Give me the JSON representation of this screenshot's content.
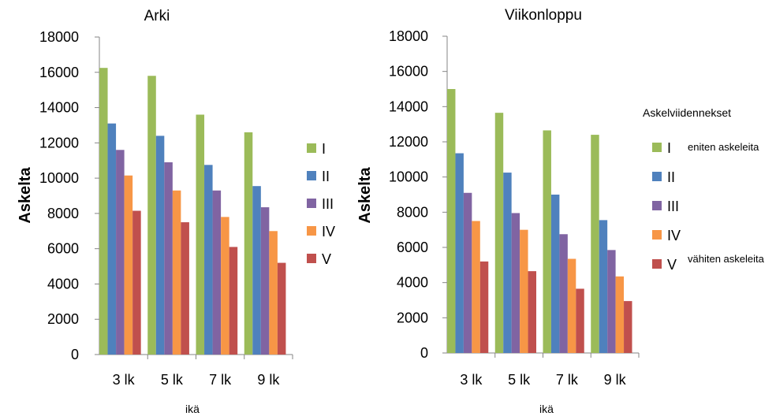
{
  "chart_data": [
    {
      "type": "bar",
      "title": "Arki",
      "xlabel": "ikä",
      "ylabel": "Askelta",
      "ylim": [
        0,
        18000
      ],
      "yticks": [
        0,
        2000,
        4000,
        6000,
        8000,
        10000,
        12000,
        14000,
        16000,
        18000
      ],
      "categories": [
        "3 lk",
        "5 lk",
        "7 lk",
        "9 lk"
      ],
      "legend_position": "right",
      "series": [
        {
          "name": "I",
          "color": "#9BBB59",
          "values": [
            16250,
            15800,
            13600,
            12600
          ]
        },
        {
          "name": "II",
          "color": "#4F81BD",
          "values": [
            13100,
            12400,
            10750,
            9550
          ]
        },
        {
          "name": "III",
          "color": "#8064A2",
          "values": [
            11600,
            10900,
            9300,
            8350
          ]
        },
        {
          "name": "IV",
          "color": "#F79646",
          "values": [
            10150,
            9300,
            7800,
            7000
          ]
        },
        {
          "name": "V",
          "color": "#C0504D",
          "values": [
            8150,
            7500,
            6100,
            5200
          ]
        }
      ]
    },
    {
      "type": "bar",
      "title": "Viikonloppu",
      "xlabel": "ikä",
      "ylabel": "Askelta",
      "ylim": [
        0,
        18000
      ],
      "yticks": [
        0,
        2000,
        4000,
        6000,
        8000,
        10000,
        12000,
        14000,
        16000,
        18000
      ],
      "categories": [
        "3 lk",
        "5 lk",
        "7 lk",
        "9 lk"
      ],
      "legend_position": "right",
      "legend_title": "Askelviidennekset",
      "series": [
        {
          "name": "I",
          "note": "eniten askeleita",
          "color": "#9BBB59",
          "values": [
            15000,
            13650,
            12650,
            12400
          ]
        },
        {
          "name": "II",
          "color": "#4F81BD",
          "values": [
            11350,
            10250,
            9000,
            7550
          ]
        },
        {
          "name": "III",
          "color": "#8064A2",
          "values": [
            9100,
            7950,
            6750,
            5850
          ]
        },
        {
          "name": "IV",
          "color": "#F79646",
          "values": [
            7500,
            7000,
            5350,
            4350
          ]
        },
        {
          "name": "V",
          "note": "vähiten askeleita",
          "color": "#C0504D",
          "values": [
            5200,
            4650,
            3650,
            2950
          ]
        }
      ]
    }
  ]
}
